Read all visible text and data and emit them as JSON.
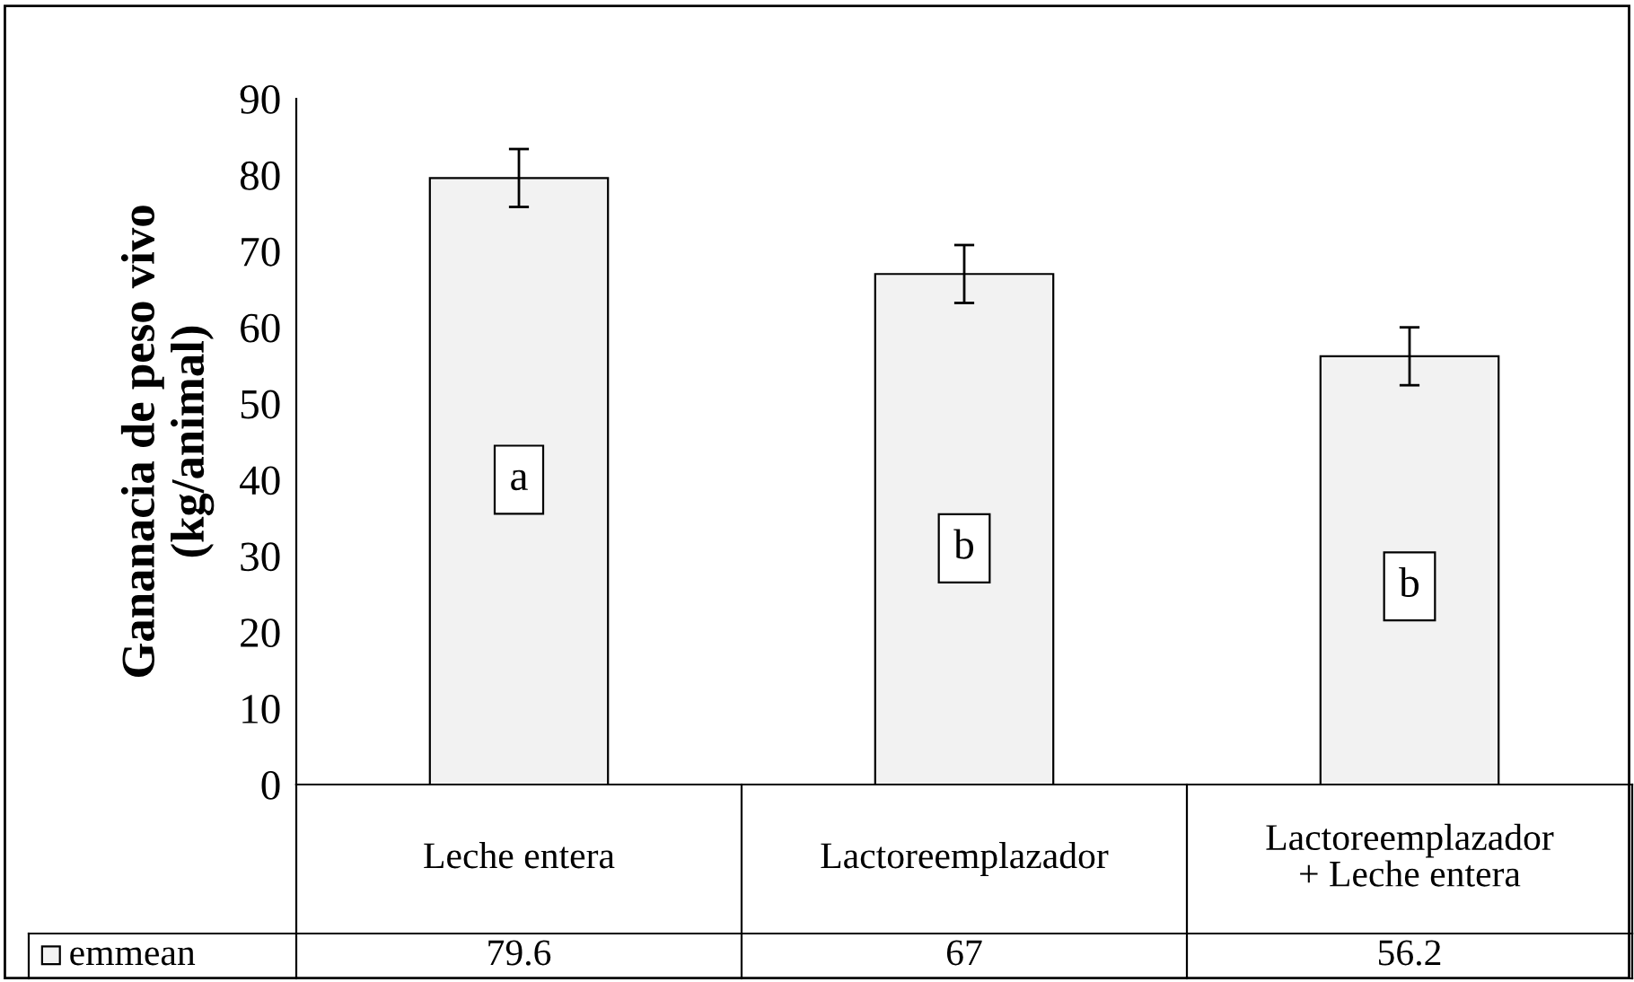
{
  "chart_data": {
    "type": "bar",
    "ylabel": "Gananacia de peso vivo\n(kg/animal)",
    "categories": [
      "Leche entera",
      "Lactoreemplazador",
      "Lactoreemplazador\n+ Leche entera"
    ],
    "series": [
      {
        "name": "emmean",
        "color": "#f2f2f2",
        "values": [
          79.6,
          67,
          56.2
        ],
        "errors": [
          3.8,
          3.8,
          3.8
        ]
      }
    ],
    "data_labels": true,
    "ylim": [
      0,
      90
    ],
    "yticks": [
      0,
      10,
      20,
      30,
      40,
      50,
      60,
      70,
      80,
      90
    ],
    "annotations": [
      {
        "text": "a",
        "x": "Leche entera",
        "y": 40
      },
      {
        "text": "b",
        "x": "Lactoreemplazador",
        "y": 31
      },
      {
        "text": "b",
        "x": "Lactoreemplazador\n+ Leche entera",
        "y": 26
      }
    ]
  }
}
